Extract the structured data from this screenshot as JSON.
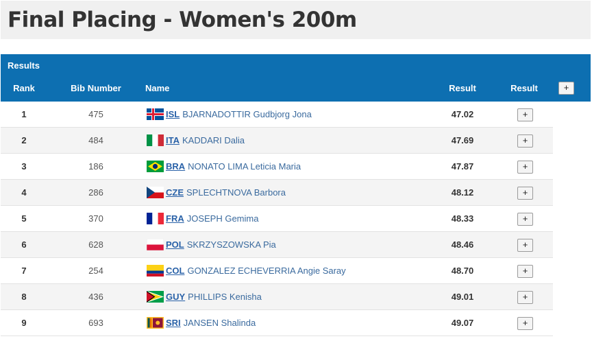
{
  "page_title": "Final Placing - Women's 200m",
  "table": {
    "caption": "Results",
    "headers": {
      "rank": "Rank",
      "bib": "Bib Number",
      "name": "Name",
      "result": "Result",
      "result_toggle": "Result",
      "expand_all": "+"
    },
    "rows": [
      {
        "rank": "1",
        "bib": "475",
        "country": "ISL",
        "athlete": "BJARNADOTTIR Gudbjorg Jona",
        "result": "47.02",
        "expand": "+",
        "flag": "iceland-flag"
      },
      {
        "rank": "2",
        "bib": "484",
        "country": "ITA",
        "athlete": "KADDARI Dalia",
        "result": "47.69",
        "expand": "+",
        "flag": "italy-flag"
      },
      {
        "rank": "3",
        "bib": "186",
        "country": "BRA",
        "athlete": "NONATO LIMA Leticia Maria",
        "result": "47.87",
        "expand": "+",
        "flag": "brazil-flag"
      },
      {
        "rank": "4",
        "bib": "286",
        "country": "CZE",
        "athlete": "SPLECHTNOVA Barbora",
        "result": "48.12",
        "expand": "+",
        "flag": "czechia-flag"
      },
      {
        "rank": "5",
        "bib": "370",
        "country": "FRA",
        "athlete": "JOSEPH Gemima",
        "result": "48.33",
        "expand": "+",
        "flag": "france-flag"
      },
      {
        "rank": "6",
        "bib": "628",
        "country": "POL",
        "athlete": "SKRZYSZOWSKA Pia",
        "result": "48.46",
        "expand": "+",
        "flag": "poland-flag"
      },
      {
        "rank": "7",
        "bib": "254",
        "country": "COL",
        "athlete": "GONZALEZ ECHEVERRIA Angie Saray",
        "result": "48.70",
        "expand": "+",
        "flag": "colombia-flag"
      },
      {
        "rank": "8",
        "bib": "436",
        "country": "GUY",
        "athlete": "PHILLIPS Kenisha",
        "result": "49.01",
        "expand": "+",
        "flag": "guyana-flag"
      },
      {
        "rank": "9",
        "bib": "693",
        "country": "SRI",
        "athlete": "JANSEN Shalinda",
        "result": "49.07",
        "expand": "+",
        "flag": "sri-lanka-flag"
      }
    ]
  },
  "colors": {
    "header_bg": "#0d6fb1",
    "link": "#2a62a8"
  }
}
